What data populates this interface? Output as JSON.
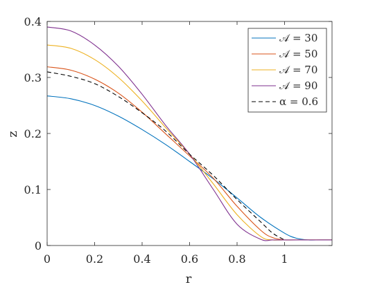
{
  "chart_data": {
    "type": "line",
    "xlabel": "r",
    "ylabel": "z",
    "xlim": [
      0,
      1.2
    ],
    "ylim": [
      0,
      0.4
    ],
    "xticks": [
      {
        "value": 0,
        "label": "0"
      },
      {
        "value": 0.2,
        "label": "0.2"
      },
      {
        "value": 0.4,
        "label": "0.4"
      },
      {
        "value": 0.6,
        "label": "0.6"
      },
      {
        "value": 0.8,
        "label": "0.8"
      },
      {
        "value": 1.0,
        "label": "1"
      }
    ],
    "yticks": [
      {
        "value": 0,
        "label": "0"
      },
      {
        "value": 0.1,
        "label": "0.1"
      },
      {
        "value": 0.2,
        "label": "0.2"
      },
      {
        "value": 0.3,
        "label": "0.3"
      },
      {
        "value": 0.4,
        "label": "0.4"
      }
    ],
    "grid": false,
    "box": true,
    "legend_position": "top-right",
    "series": [
      {
        "name": "𝒜 = 30",
        "color": "#0072BD",
        "dash": "solid",
        "x": [
          0,
          0.1,
          0.2,
          0.3,
          0.4,
          0.5,
          0.6,
          0.7,
          0.8,
          0.9,
          1.0,
          1.05,
          1.1,
          1.15,
          1.2
        ],
        "y": [
          0.267,
          0.262,
          0.25,
          0.231,
          0.207,
          0.18,
          0.15,
          0.119,
          0.085,
          0.05,
          0.022,
          0.013,
          0.01,
          0.01,
          0.01
        ]
      },
      {
        "name": "𝒜 = 50",
        "color": "#D95319",
        "dash": "solid",
        "x": [
          0,
          0.1,
          0.2,
          0.3,
          0.4,
          0.5,
          0.6,
          0.7,
          0.8,
          0.9,
          0.95,
          1.0,
          1.05,
          1.2
        ],
        "y": [
          0.319,
          0.313,
          0.297,
          0.272,
          0.238,
          0.199,
          0.16,
          0.12,
          0.07,
          0.027,
          0.014,
          0.01,
          0.01,
          0.01
        ]
      },
      {
        "name": "𝒜 = 70",
        "color": "#EDB120",
        "dash": "solid",
        "x": [
          0,
          0.1,
          0.2,
          0.3,
          0.4,
          0.5,
          0.6,
          0.7,
          0.8,
          0.9,
          0.95,
          1.0,
          1.2
        ],
        "y": [
          0.358,
          0.352,
          0.332,
          0.3,
          0.258,
          0.21,
          0.163,
          0.11,
          0.055,
          0.016,
          0.01,
          0.01,
          0.01
        ]
      },
      {
        "name": "𝒜 = 90",
        "color": "#7E2F8E",
        "dash": "solid",
        "x": [
          0,
          0.1,
          0.2,
          0.3,
          0.4,
          0.5,
          0.6,
          0.7,
          0.8,
          0.9,
          0.95,
          1.0,
          1.2
        ],
        "y": [
          0.39,
          0.383,
          0.358,
          0.32,
          0.27,
          0.214,
          0.163,
          0.1,
          0.038,
          0.011,
          0.01,
          0.01,
          0.01
        ]
      },
      {
        "name": "α = 0.6",
        "color": "#000000",
        "dash": "dashed",
        "x": [
          0,
          0.1,
          0.2,
          0.3,
          0.4,
          0.5,
          0.6,
          0.7,
          0.8,
          0.9,
          0.95,
          1.0
        ],
        "y": [
          0.31,
          0.302,
          0.289,
          0.266,
          0.237,
          0.204,
          0.163,
          0.125,
          0.082,
          0.042,
          0.022,
          0.01
        ]
      }
    ]
  }
}
